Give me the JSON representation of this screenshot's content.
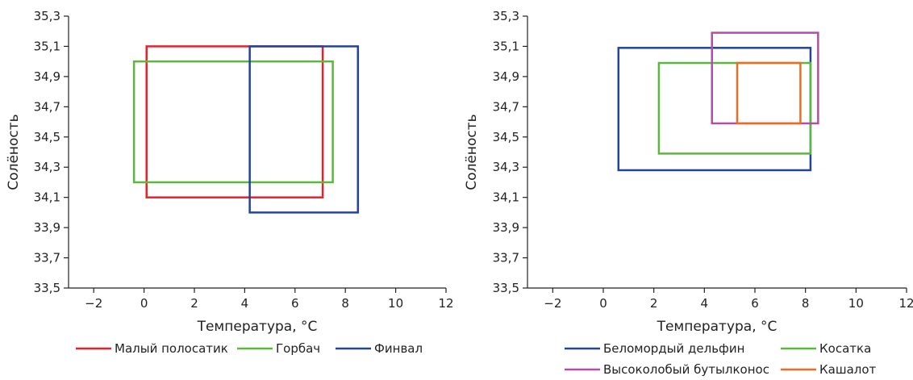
{
  "chart_data": [
    {
      "type": "rectangle-range",
      "xlabel": "Температура, °C",
      "ylabel": "Солёность",
      "xlim": [
        -3,
        12
      ],
      "ylim": [
        33.5,
        35.3
      ],
      "xticks": [
        "−2",
        "0",
        "2",
        "4",
        "6",
        "8",
        "10",
        "12"
      ],
      "xtick_values": [
        -2,
        0,
        2,
        4,
        6,
        8,
        10,
        12
      ],
      "yticks": [
        "33,5",
        "33,7",
        "33,9",
        "34,1",
        "34,3",
        "34,5",
        "34,7",
        "34,9",
        "35,1",
        "35,3"
      ],
      "ytick_values": [
        33.5,
        33.7,
        33.9,
        34.1,
        34.3,
        34.5,
        34.7,
        34.9,
        35.1,
        35.3
      ],
      "legend_position": "bottom",
      "series": [
        {
          "name": "Малый полосатик",
          "color": "#e8202a",
          "x_range": [
            0.1,
            7.1
          ],
          "y_range": [
            34.1,
            35.1
          ]
        },
        {
          "name": "Горбач",
          "color": "#5ab83c",
          "x_range": [
            -0.4,
            7.5
          ],
          "y_range": [
            34.2,
            35.0
          ]
        },
        {
          "name": "Финвал",
          "color": "#24449a",
          "x_range": [
            4.2,
            8.5
          ],
          "y_range": [
            34.0,
            35.1
          ]
        }
      ]
    },
    {
      "type": "rectangle-range",
      "xlabel": "Температура, °C",
      "ylabel": "Солёность",
      "xlim": [
        -3,
        12
      ],
      "ylim": [
        33.5,
        35.3
      ],
      "xticks": [
        "−2",
        "0",
        "2",
        "4",
        "6",
        "8",
        "10",
        "12"
      ],
      "xtick_values": [
        -2,
        0,
        2,
        4,
        6,
        8,
        10,
        12
      ],
      "yticks": [
        "33,5",
        "33,7",
        "33,9",
        "34,1",
        "34,3",
        "34,5",
        "34,7",
        "34,9",
        "35,1",
        "35,3"
      ],
      "ytick_values": [
        33.5,
        33.7,
        33.9,
        34.1,
        34.3,
        34.5,
        34.7,
        34.9,
        35.1,
        35.3
      ],
      "legend_position": "bottom",
      "series": [
        {
          "name": "Беломордый дельфин",
          "color": "#24449a",
          "x_range": [
            0.6,
            8.2
          ],
          "y_range": [
            34.28,
            35.09
          ]
        },
        {
          "name": "Косатка",
          "color": "#5ab83c",
          "x_range": [
            2.2,
            8.2
          ],
          "y_range": [
            34.39,
            34.99
          ]
        },
        {
          "name": "Высоколобый бутылконос",
          "color": "#b04fa8",
          "x_range": [
            4.3,
            8.5
          ],
          "y_range": [
            34.59,
            35.19
          ]
        },
        {
          "name": "Кашалот",
          "color": "#f06b22",
          "x_range": [
            5.3,
            7.8
          ],
          "y_range": [
            34.59,
            34.99
          ]
        }
      ]
    }
  ]
}
